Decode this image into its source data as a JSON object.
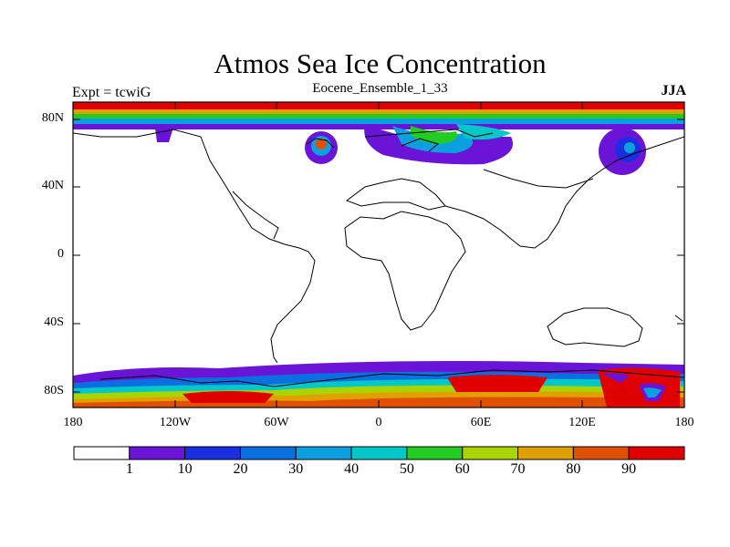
{
  "title": "Atmos Sea Ice Concentration",
  "subtitle": "Eocene_Ensemble_1_33",
  "left_label": "Expt = tcwiG",
  "right_label": "JJA",
  "axes": {
    "lat_ticks": [
      "80N",
      "40N",
      "0",
      "40S",
      "80S"
    ],
    "lon_ticks": [
      "180",
      "120W",
      "60W",
      "0",
      "60E",
      "120E",
      "180"
    ]
  },
  "colorbar": {
    "labels": [
      "1",
      "10",
      "20",
      "30",
      "40",
      "50",
      "60",
      "70",
      "80",
      "90"
    ],
    "colors": [
      "#ffffff",
      "#6a14d8",
      "#1c2fe0",
      "#0a6fe0",
      "#0aa0e0",
      "#00c8c8",
      "#22cc22",
      "#aad400",
      "#e0a000",
      "#e05000",
      "#e00000"
    ]
  }
}
